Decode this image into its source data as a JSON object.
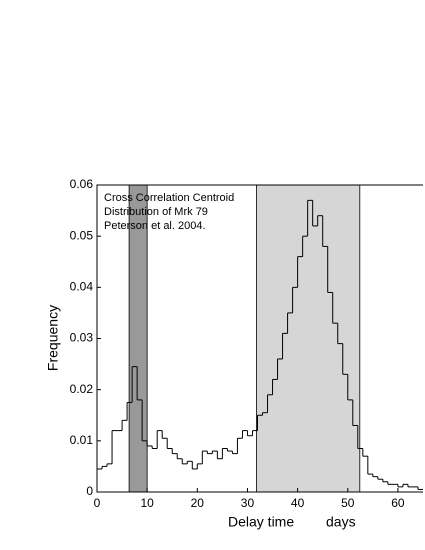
{
  "chart_data": {
    "type": "histogram",
    "annotation": [
      "Cross Correlation Centroid",
      "Distribution of Mrk 79",
      "Peterson et al. 2004."
    ],
    "ylabel": "Frequency",
    "xlabel": [
      "Delay time",
      "days"
    ],
    "bins": [
      0,
      1,
      2,
      3,
      4,
      5,
      6,
      7,
      8,
      9,
      10,
      11,
      12,
      13,
      14,
      15,
      16,
      17,
      18,
      19,
      20,
      21,
      22,
      23,
      24,
      25,
      26,
      27,
      28,
      29,
      30,
      31,
      32,
      33,
      34,
      35,
      36,
      37,
      38,
      39,
      40,
      41,
      42,
      43,
      44,
      45,
      46,
      47,
      48,
      49,
      50,
      51,
      52,
      53,
      54,
      55,
      56,
      57,
      58,
      59,
      60,
      61,
      62,
      63,
      64,
      65
    ],
    "values": [
      0.0045,
      0.005,
      0.0055,
      0.012,
      0.012,
      0.014,
      0.0175,
      0.0245,
      0.018,
      0.01,
      0.009,
      0.0085,
      0.012,
      0.0105,
      0.0085,
      0.0075,
      0.0065,
      0.0055,
      0.006,
      0.0045,
      0.0055,
      0.008,
      0.0075,
      0.008,
      0.0065,
      0.0085,
      0.008,
      0.0075,
      0.0105,
      0.012,
      0.011,
      0.012,
      0.015,
      0.0155,
      0.019,
      0.022,
      0.026,
      0.031,
      0.035,
      0.04,
      0.046,
      0.05,
      0.057,
      0.052,
      0.054,
      0.048,
      0.039,
      0.033,
      0.029,
      0.023,
      0.018,
      0.013,
      0.0085,
      0.007,
      0.0035,
      0.003,
      0.0025,
      0.002,
      0.0015,
      0.0015,
      0.001,
      0.0015,
      0.001,
      0.001,
      0.0005
    ],
    "color": "#000000",
    "shaded_ranges": [
      {
        "range": [
          6.4,
          10
        ],
        "color": "#999999"
      },
      {
        "range": [
          31.8,
          52.4
        ],
        "color": "#d6d6d6"
      }
    ],
    "xlim": [
      0,
      65
    ],
    "ylim": [
      0,
      0.06
    ],
    "xticks": [
      0,
      10,
      20,
      30,
      40,
      50,
      60
    ],
    "yticks": [
      0,
      0.01,
      0.02,
      0.03,
      0.04,
      0.05,
      0.06
    ],
    "grid": false
  }
}
